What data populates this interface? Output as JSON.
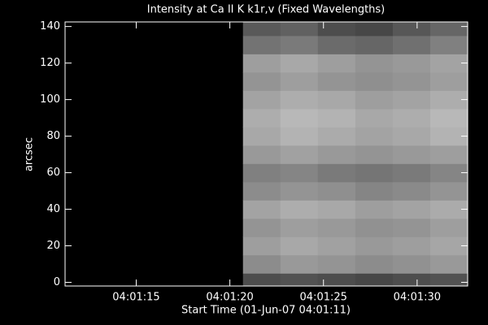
{
  "chart_data": {
    "type": "heatmap",
    "title": "Intensity at Ca II K k1r,v (Fixed Wavelengths)",
    "xlabel": "Start Time (01-Jun-07 04:01:11)",
    "ylabel": "arcsec",
    "x": [
      21.7,
      23.7,
      25.7,
      27.7,
      29.7,
      31.7
    ],
    "y": [
      0,
      10,
      20,
      30,
      40,
      50,
      60,
      70,
      80,
      90,
      100,
      110,
      120,
      130,
      140
    ],
    "values": [
      [
        0.3,
        0.32,
        0.3,
        0.28,
        0.3,
        0.32
      ],
      [
        0.55,
        0.6,
        0.58,
        0.55,
        0.57,
        0.6
      ],
      [
        0.62,
        0.66,
        0.63,
        0.6,
        0.62,
        0.65
      ],
      [
        0.58,
        0.62,
        0.6,
        0.57,
        0.58,
        0.62
      ],
      [
        0.64,
        0.68,
        0.66,
        0.62,
        0.64,
        0.67
      ],
      [
        0.55,
        0.58,
        0.56,
        0.52,
        0.54,
        0.58
      ],
      [
        0.5,
        0.52,
        0.48,
        0.46,
        0.48,
        0.52
      ],
      [
        0.6,
        0.63,
        0.6,
        0.58,
        0.6,
        0.62
      ],
      [
        0.66,
        0.7,
        0.67,
        0.64,
        0.66,
        0.7
      ],
      [
        0.68,
        0.72,
        0.7,
        0.66,
        0.68,
        0.72
      ],
      [
        0.64,
        0.68,
        0.66,
        0.62,
        0.64,
        0.68
      ],
      [
        0.58,
        0.62,
        0.58,
        0.56,
        0.58,
        0.62
      ],
      [
        0.62,
        0.66,
        0.62,
        0.58,
        0.6,
        0.64
      ],
      [
        0.45,
        0.48,
        0.42,
        0.4,
        0.44,
        0.5
      ],
      [
        0.35,
        0.38,
        0.3,
        0.28,
        0.34,
        0.4
      ]
    ],
    "xlim": [
      11.2,
      32.7
    ],
    "ylim": [
      -2,
      142.5
    ],
    "xticks": [
      {
        "value": 15,
        "label": "04:01:15"
      },
      {
        "value": 20,
        "label": "04:01:20"
      },
      {
        "value": 25,
        "label": "04:01:25"
      },
      {
        "value": 30,
        "label": "04:01:30"
      }
    ],
    "yticks": [
      0,
      20,
      40,
      60,
      80,
      100,
      120,
      140
    ],
    "background": "#000000",
    "axis_color": "#ffffff"
  }
}
